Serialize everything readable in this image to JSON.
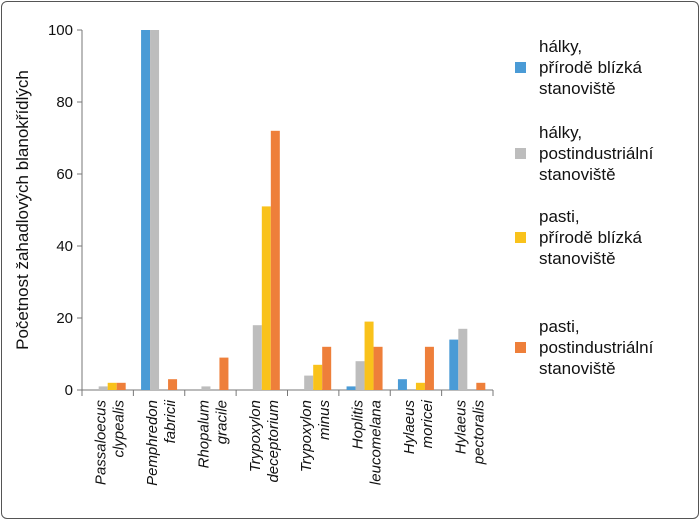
{
  "chart_data": {
    "type": "bar",
    "ylabel": "Početnost žahadlových blanokřídlých",
    "ylim": [
      0,
      100
    ],
    "yticks": [
      0,
      20,
      40,
      60,
      80,
      100
    ],
    "grid": false,
    "legend_position": "right",
    "categories": [
      [
        "Passaloecus",
        "clypealis"
      ],
      [
        "Pemphredon",
        "fabricii"
      ],
      [
        "Rhopalum",
        "gracile"
      ],
      [
        "Trypoxylon",
        "deceptorium"
      ],
      [
        "Trypoxylon",
        "minus"
      ],
      [
        "Hoplitis",
        "leucomelana"
      ],
      [
        "Hylaeus",
        "moricei"
      ],
      [
        "Hylaeus",
        "pectoralis"
      ]
    ],
    "series": [
      {
        "name": [
          "hálky,",
          "přírodě blízká",
          "stanoviště"
        ],
        "color": "#4a9bd6",
        "values": [
          0,
          100,
          0,
          0,
          0,
          1,
          3,
          14
        ]
      },
      {
        "name": [
          "hálky,",
          "postindustriální",
          "stanoviště"
        ],
        "color": "#bdbdbd",
        "values": [
          1,
          100,
          1,
          18,
          4,
          8,
          0,
          17
        ]
      },
      {
        "name": [
          "pasti,",
          "přírodě blízká",
          "stanoviště"
        ],
        "color": "#f9c21b",
        "values": [
          2,
          0,
          0,
          51,
          7,
          19,
          2,
          0
        ]
      },
      {
        "name": [
          "pasti,",
          "postindustriální",
          "stanoviště"
        ],
        "color": "#ee7f3a",
        "values": [
          2,
          3,
          9,
          72,
          12,
          12,
          12,
          2
        ]
      }
    ]
  }
}
